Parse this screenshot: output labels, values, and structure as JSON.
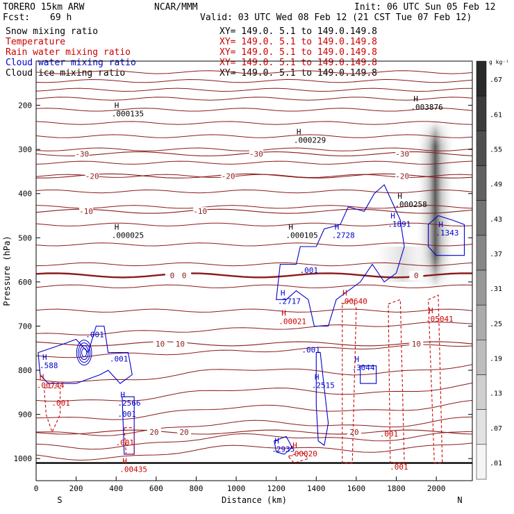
{
  "header": {
    "model": "TORERO  15km ARW",
    "center": "NCAR/MMM",
    "init": "Init: 06 UTC Sun 05 Feb 12",
    "fcst_label": "Fcst:",
    "fcst_value": "69 h",
    "valid": "Valid: 03 UTC Wed 08 Feb 12 (21 CST Tue 07 Feb 12)"
  },
  "legend": [
    {
      "name": "Snow mixing ratio",
      "xy": "XY= 149.0.  5.1 to 149.0.149.8",
      "color": "#000000"
    },
    {
      "name": "Temperature",
      "xy": "XY= 149.0.  5.1 to 149.0.149.8",
      "color": "#cc0000"
    },
    {
      "name": "Rain water mixing ratio",
      "xy": "XY= 149.0.  5.1 to 149.0.149.8",
      "color": "#cc0000"
    },
    {
      "name": "Cloud water mixing ratio",
      "xy": "XY= 149.0.  5.1 to 149.0.149.8",
      "color": "#0000cc"
    },
    {
      "name": "Cloud ice mixing ratio",
      "xy": "XY= 149.0.  5.1 to 149.0.149.8",
      "color": "#000000"
    }
  ],
  "chart_data": {
    "type": "cross-section contour",
    "xlabel": "Distance (km)",
    "ylabel": "Pressure (hPa)",
    "xlim": [
      0,
      2180
    ],
    "ylim": [
      1050,
      100
    ],
    "x_ticks": [
      0,
      200,
      400,
      600,
      800,
      1000,
      1200,
      1400,
      1600,
      1800,
      2000
    ],
    "y_ticks": [
      200,
      300,
      400,
      500,
      600,
      700,
      800,
      900,
      1000
    ],
    "x_end_labels": {
      "left": "S",
      "right": "N"
    },
    "colorbar": {
      "units": "g kg⁻¹",
      "ticks": [
        ".67",
        ".61",
        ".55",
        ".49",
        ".43",
        ".37",
        ".31",
        ".25",
        ".19",
        ".13",
        ".07",
        ".01"
      ],
      "colors": {
        "low": "#f4f4f4",
        "high": "#2a2a2a"
      }
    },
    "isotherms": [
      {
        "label": "-30",
        "p": 310,
        "label_x": [
          230,
          1100,
          1830
        ]
      },
      {
        "label": "-20",
        "p": 360,
        "label_x": [
          280,
          960,
          1830
        ]
      },
      {
        "label": "-10",
        "p": 440,
        "label_x": [
          250,
          820
        ]
      },
      {
        "label": "0",
        "p": 585,
        "label_x": [
          680,
          740,
          1900
        ],
        "emphasis": true
      },
      {
        "label": "10",
        "p": 740,
        "label_x": [
          620,
          720,
          1900
        ]
      },
      {
        "label": "20",
        "p": 940,
        "label_x": [
          590,
          740,
          1590
        ]
      }
    ],
    "snow_maxima": [
      {
        "x": 440,
        "p": 225,
        "label": ".000135"
      },
      {
        "x": 1350,
        "p": 285,
        "label": ".000229"
      },
      {
        "x": 1935,
        "p": 210,
        "label": ".003876"
      },
      {
        "x": 440,
        "p": 500,
        "label": ".000025"
      },
      {
        "x": 1310,
        "p": 500,
        "label": ".000105"
      },
      {
        "x": 1855,
        "p": 430,
        "label": ".000258"
      }
    ],
    "cloud_water_maxima": [
      {
        "x": 1540,
        "p": 500,
        "label": ".2728"
      },
      {
        "x": 1820,
        "p": 475,
        "label": ".1891"
      },
      {
        "x": 2060,
        "p": 495,
        "label": ".1343"
      },
      {
        "x": 1270,
        "p": 650,
        "label": ".2717"
      },
      {
        "x": 1380,
        "p": 580,
        "label": ".001"
      },
      {
        "x": 1390,
        "p": 760,
        "label": ".001"
      },
      {
        "x": 1440,
        "p": 840,
        "label": ".2515"
      },
      {
        "x": 1640,
        "p": 800,
        "label": ".3044"
      },
      {
        "x": 80,
        "p": 795,
        "label": ".588"
      },
      {
        "x": 310,
        "p": 725,
        "label": ".001"
      },
      {
        "x": 430,
        "p": 780,
        "label": ".001"
      },
      {
        "x": 470,
        "p": 880,
        "label": ".2566"
      },
      {
        "x": 470,
        "p": 905,
        "label": ".001"
      },
      {
        "x": 1240,
        "p": 985,
        "label": ".2935"
      }
    ],
    "rain_maxima": [
      {
        "x": 1580,
        "p": 650,
        "label": ".00640"
      },
      {
        "x": 1275,
        "p": 695,
        "label": ".00021"
      },
      {
        "x": 2010,
        "p": 690,
        "label": ".05041"
      },
      {
        "x": 65,
        "p": 840,
        "label": ".00744"
      },
      {
        "x": 140,
        "p": 880,
        "label": ".001"
      },
      {
        "x": 460,
        "p": 970,
        "label": ".001"
      },
      {
        "x": 480,
        "p": 1030,
        "label": ".00435"
      },
      {
        "x": 1330,
        "p": 995,
        "label": ".00020"
      },
      {
        "x": 1780,
        "p": 950,
        "label": ".001"
      },
      {
        "x": 1830,
        "p": 1025,
        "label": ".001"
      }
    ]
  }
}
